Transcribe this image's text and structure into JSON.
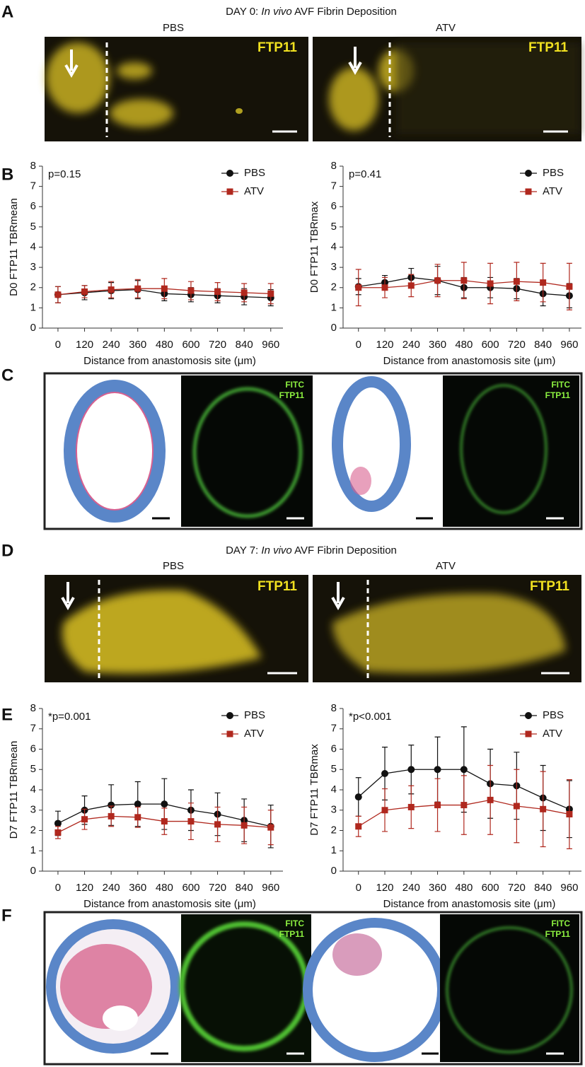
{
  "figure": {
    "panels": [
      "A",
      "B",
      "C",
      "D",
      "E",
      "F"
    ],
    "day0_title": [
      "DAY 0: ",
      "In vivo",
      " AVF Fibrin Deposition"
    ],
    "day0_labels": [
      "PBS",
      "ATV"
    ],
    "day0_stain": [
      "FTP11",
      "FTP11"
    ],
    "c_labels": [
      [
        "FITC",
        "FTP11"
      ],
      [
        "FITC",
        "FTP11"
      ]
    ],
    "day7_title": [
      "DAY 7: ",
      "In vivo",
      " AVF Fibrin Deposition"
    ],
    "day7_labels": [
      "PBS",
      "ATV"
    ],
    "day7_stain": [
      "FTP11",
      "FTP11"
    ],
    "f_labels": [
      [
        "FITC",
        "FTP11"
      ],
      [
        "FITC",
        "FTP11"
      ]
    ]
  },
  "chart_data": [
    {
      "type": "line",
      "ylabel": "D0 FTP11 TBRmean",
      "xlabel": "Distance from anastomosis site (μm)",
      "annotation": "p=0.15",
      "x": [
        0,
        120,
        240,
        360,
        480,
        600,
        720,
        840,
        960
      ],
      "series": [
        {
          "name": "PBS",
          "color": "#111111",
          "values": [
            1.65,
            1.75,
            1.85,
            1.9,
            1.7,
            1.65,
            1.6,
            1.55,
            1.5
          ],
          "errors": [
            0.4,
            0.35,
            0.4,
            0.45,
            0.35,
            0.35,
            0.35,
            0.4,
            0.4
          ]
        },
        {
          "name": "ATV",
          "color": "#b0281e",
          "values": [
            1.65,
            1.8,
            1.9,
            1.95,
            1.95,
            1.85,
            1.8,
            1.75,
            1.7
          ],
          "errors": [
            0.4,
            0.3,
            0.4,
            0.45,
            0.5,
            0.45,
            0.45,
            0.45,
            0.5
          ]
        }
      ],
      "xlim": [
        -70,
        1015
      ],
      "ylim": [
        0,
        8
      ],
      "xticks": [
        0,
        120,
        240,
        360,
        480,
        600,
        720,
        840,
        960
      ],
      "yticks": [
        0,
        1,
        2,
        3,
        4,
        5,
        6,
        7,
        8
      ],
      "legend": "upper right"
    },
    {
      "type": "line",
      "ylabel": "D0 FTP11 TBRmax",
      "xlabel": "Distance from anastomosis site (μm)",
      "annotation": "p=0.41",
      "x": [
        0,
        120,
        240,
        360,
        480,
        600,
        720,
        840,
        960
      ],
      "series": [
        {
          "name": "PBS",
          "color": "#111111",
          "values": [
            2.05,
            2.25,
            2.5,
            2.35,
            2.0,
            2.0,
            1.95,
            1.7,
            1.6
          ],
          "errors": [
            0.4,
            0.35,
            0.45,
            0.7,
            0.5,
            0.5,
            0.5,
            0.6,
            0.6
          ]
        },
        {
          "name": "ATV",
          "color": "#b0281e",
          "values": [
            2.0,
            2.0,
            2.1,
            2.35,
            2.35,
            2.2,
            2.3,
            2.25,
            2.05
          ],
          "errors": [
            0.9,
            0.5,
            0.55,
            0.8,
            0.9,
            1.0,
            0.95,
            0.95,
            1.15
          ]
        }
      ],
      "xlim": [
        -70,
        1015
      ],
      "ylim": [
        0,
        8
      ],
      "xticks": [
        0,
        120,
        240,
        360,
        480,
        600,
        720,
        840,
        960
      ],
      "yticks": [
        0,
        1,
        2,
        3,
        4,
        5,
        6,
        7,
        8
      ],
      "legend": "upper right"
    },
    {
      "type": "line",
      "ylabel": "D7 FTP11 TBRmean",
      "xlabel": "Distance from anastomosis site (μm)",
      "annotation": "*p=0.001",
      "x": [
        0,
        120,
        240,
        360,
        480,
        600,
        720,
        840,
        960
      ],
      "series": [
        {
          "name": "PBS",
          "color": "#111111",
          "values": [
            2.35,
            3.0,
            3.25,
            3.3,
            3.3,
            3.0,
            2.8,
            2.5,
            2.2
          ],
          "errors": [
            0.6,
            0.7,
            1.0,
            1.1,
            1.25,
            1.0,
            1.05,
            1.05,
            1.05
          ]
        },
        {
          "name": "ATV",
          "color": "#b0281e",
          "values": [
            1.9,
            2.55,
            2.7,
            2.65,
            2.45,
            2.45,
            2.3,
            2.25,
            2.15
          ],
          "errors": [
            0.3,
            0.5,
            0.5,
            0.5,
            0.65,
            0.9,
            0.85,
            0.9,
            0.85
          ]
        }
      ],
      "xlim": [
        -70,
        1015
      ],
      "ylim": [
        0,
        8
      ],
      "xticks": [
        0,
        120,
        240,
        360,
        480,
        600,
        720,
        840,
        960
      ],
      "yticks": [
        0,
        1,
        2,
        3,
        4,
        5,
        6,
        7,
        8
      ],
      "legend": "upper right"
    },
    {
      "type": "line",
      "ylabel": "D7 FTP11 TBRmax",
      "xlabel": "Distance from anastomosis site (μm)",
      "annotation": "*p<0.001",
      "x": [
        0,
        120,
        240,
        360,
        480,
        600,
        720,
        840,
        960
      ],
      "series": [
        {
          "name": "PBS",
          "color": "#111111",
          "values": [
            3.65,
            4.8,
            5.0,
            5.0,
            5.0,
            4.3,
            4.2,
            3.6,
            3.05
          ],
          "errors": [
            0.95,
            1.3,
            1.2,
            1.6,
            2.1,
            1.7,
            1.65,
            1.6,
            1.4
          ]
        },
        {
          "name": "ATV",
          "color": "#b0281e",
          "values": [
            2.2,
            3.0,
            3.15,
            3.25,
            3.25,
            3.5,
            3.2,
            3.05,
            2.8
          ],
          "errors": [
            0.5,
            1.05,
            1.05,
            1.3,
            1.45,
            1.7,
            1.8,
            1.85,
            1.7
          ]
        }
      ],
      "xlim": [
        -70,
        1015
      ],
      "ylim": [
        0,
        8
      ],
      "xticks": [
        0,
        120,
        240,
        360,
        480,
        600,
        720,
        840,
        960
      ],
      "yticks": [
        0,
        1,
        2,
        3,
        4,
        5,
        6,
        7,
        8
      ],
      "legend": "upper right"
    }
  ]
}
